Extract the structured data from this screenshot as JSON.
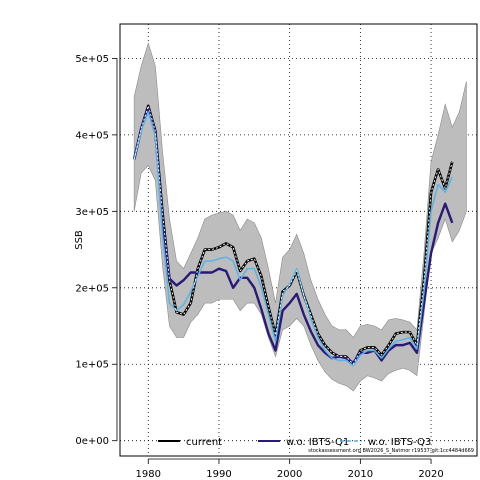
{
  "chart_data": {
    "type": "line",
    "xlabel": "",
    "ylabel": "SSB",
    "xlim": [
      1976,
      2026.5
    ],
    "ylim": [
      -20000,
      545000
    ],
    "x_ticks": [
      1980,
      1990,
      2000,
      2010,
      2020
    ],
    "y_ticks": [
      0,
      100000,
      200000,
      300000,
      400000,
      500000
    ],
    "y_tick_labels": [
      "0e+00",
      "1e+05",
      "2e+05",
      "3e+05",
      "4e+05",
      "5e+05"
    ],
    "grid": true,
    "legend_position": "bottom",
    "x": [
      1978,
      1979,
      1980,
      1981,
      1982,
      1983,
      1984,
      1985,
      1986,
      1987,
      1988,
      1989,
      1990,
      1991,
      1992,
      1993,
      1994,
      1995,
      1996,
      1997,
      1998,
      1999,
      2000,
      2001,
      2002,
      2003,
      2004,
      2005,
      2006,
      2007,
      2008,
      2009,
      2010,
      2011,
      2012,
      2013,
      2014,
      2015,
      2016,
      2017,
      2018,
      2019,
      2020,
      2021,
      2022,
      2023,
      2024,
      2025
    ],
    "confidence_band": {
      "upper": [
        450000,
        490000,
        520000,
        490000,
        380000,
        290000,
        235000,
        225000,
        245000,
        265000,
        290000,
        295000,
        298000,
        300000,
        295000,
        275000,
        290000,
        285000,
        265000,
        225000,
        180000,
        240000,
        250000,
        270000,
        245000,
        210000,
        185000,
        165000,
        150000,
        145000,
        145000,
        135000,
        150000,
        152000,
        150000,
        145000,
        158000,
        160000,
        158000,
        155000,
        145000,
        245000,
        365000,
        400000,
        440000,
        410000,
        430000,
        470000
      ],
      "lower": [
        300000,
        350000,
        360000,
        340000,
        230000,
        150000,
        135000,
        135000,
        155000,
        165000,
        180000,
        180000,
        185000,
        185000,
        185000,
        170000,
        180000,
        180000,
        165000,
        135000,
        110000,
        145000,
        150000,
        160000,
        150000,
        125000,
        105000,
        90000,
        80000,
        75000,
        72000,
        65000,
        78000,
        85000,
        82000,
        78000,
        88000,
        92000,
        95000,
        92000,
        85000,
        165000,
        245000,
        265000,
        290000,
        260000,
        275000,
        300000
      ]
    },
    "series": [
      {
        "name": "current",
        "color": "#000000",
        "values": [
          368000,
          408000,
          438000,
          405000,
          300000,
          210000,
          168000,
          165000,
          180000,
          225000,
          250000,
          250000,
          253000,
          258000,
          253000,
          222000,
          235000,
          238000,
          215000,
          175000,
          138000,
          195000,
          203000,
          222000,
          190000,
          165000,
          140000,
          125000,
          115000,
          110000,
          110000,
          100000,
          118000,
          122000,
          122000,
          112000,
          125000,
          140000,
          142000,
          142000,
          125000,
          210000,
          325000,
          355000,
          330000,
          365000,
          null,
          null
        ]
      },
      {
        "name": "w.o. IBTS-Q1",
        "color": "#2a1a78",
        "values": [
          368000,
          408000,
          435000,
          402000,
          290000,
          212000,
          203000,
          210000,
          220000,
          220000,
          220000,
          220000,
          225000,
          222000,
          200000,
          213000,
          213000,
          200000,
          172000,
          140000,
          118000,
          170000,
          180000,
          192000,
          165000,
          143000,
          125000,
          115000,
          108000,
          110000,
          108000,
          102000,
          115000,
          115000,
          118000,
          105000,
          118000,
          125000,
          125000,
          128000,
          115000,
          180000,
          245000,
          285000,
          310000,
          285000,
          null,
          null
        ]
      },
      {
        "name": "w.o. IBTS-Q3",
        "color": "#56b4e9",
        "values": [
          368000,
          405000,
          430000,
          398000,
          270000,
          180000,
          170000,
          178000,
          195000,
          215000,
          235000,
          235000,
          238000,
          240000,
          235000,
          210000,
          225000,
          225000,
          200000,
          165000,
          130000,
          190000,
          205000,
          225000,
          190000,
          160000,
          135000,
          118000,
          108000,
          105000,
          105000,
          98000,
          112000,
          118000,
          118000,
          108000,
          120000,
          130000,
          132000,
          135000,
          120000,
          195000,
          300000,
          335000,
          325000,
          345000,
          null,
          null
        ]
      }
    ],
    "footnote": "stockassessment.org BW2026_S_Natmor r19537-git:1cc4484d669"
  }
}
